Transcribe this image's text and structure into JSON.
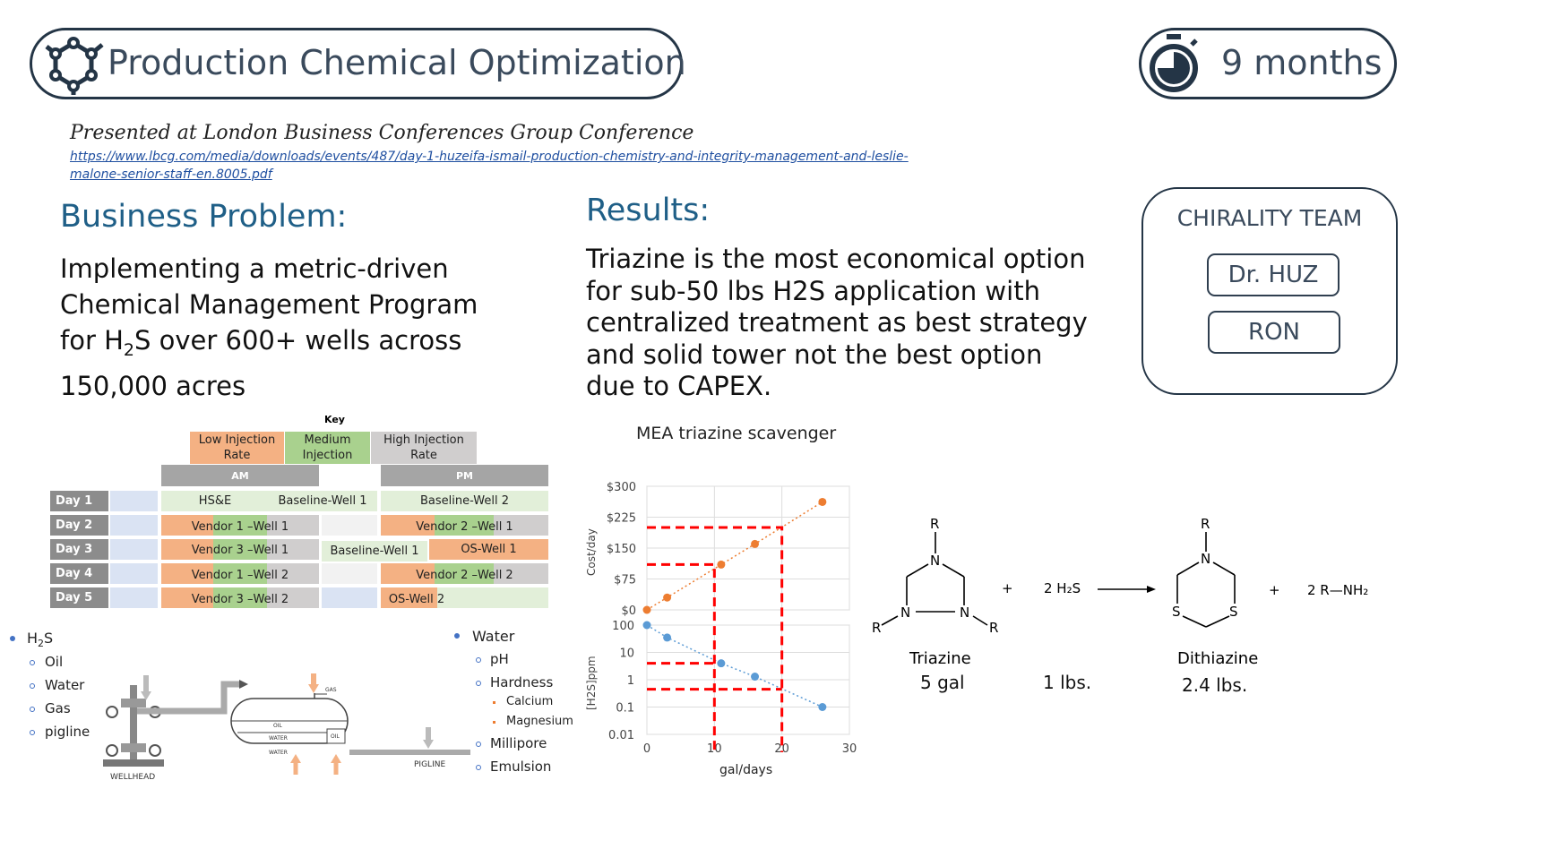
{
  "header": {
    "title": "Production Chemical Optimization",
    "duration": "9 months",
    "title_icon": "molecule-icon",
    "duration_icon": "stopwatch-icon"
  },
  "source": {
    "note": "Presented at London Business Conferences Group Conference",
    "link_line1": "https://www.lbcg.com/media/downloads/events/487/day-1-huzeifa-ismail-production-chemistry-and-integrity-management-and-leslie-",
    "link_line2": "malone-senior-staff-en.8005.pdf"
  },
  "business_problem": {
    "heading": "Business Problem:",
    "line1": "Implementing a metric-driven",
    "line2": "Chemical Management Program",
    "line3_pre": "for H",
    "line3_sub": "2",
    "line3_post": "S over 600+ wells across",
    "line4": "150,000 acres"
  },
  "results": {
    "heading": "Results:",
    "lines": [
      "Triazine is the most economical option",
      "for sub-50 lbs H2S application with",
      "centralized treatment as best strategy",
      "and solid tower not the best option",
      "due to CAPEX."
    ]
  },
  "team": {
    "title": "CHIRALITY TEAM",
    "members": [
      "Dr. HUZ",
      "RON"
    ]
  },
  "schedule": {
    "key_label": "Key",
    "key": [
      "Low Injection Rate",
      "Medium Injection",
      "High Injection Rate"
    ],
    "am": "AM",
    "pm": "PM",
    "days": [
      "Day 1",
      "Day 2",
      "Day 3",
      "Day 4",
      "Day 5"
    ],
    "entries": {
      "d1_a": "HS&E",
      "d1_b": "Baseline-Well 1",
      "d1_c": "Baseline-Well 2",
      "d2_a": "Vendor 1 –Well 1",
      "d2_c": "Vendor 2 –Well 1",
      "d3_a": "Vendor 3 –Well 1",
      "d3_b": "Baseline-Well 1",
      "d3_c": "OS-Well 1",
      "d4_a": "Vendor 1 –Well 2",
      "d4_c": "Vendor 2 –Well 2",
      "d5_a": "Vendor 3 –Well 2",
      "d5_c": "OS-Well 2"
    },
    "colors": {
      "low": "#f4b183",
      "medium": "#a9d18e",
      "high": "#d0cece",
      "blue": "#dae3f3",
      "green": "#e2efd9",
      "header": "#a5a5a5"
    }
  },
  "left_list": {
    "main_pre": "H",
    "main_sub": "2",
    "main_post": "S",
    "items": [
      "Oil",
      "Water",
      "Gas",
      "pigline"
    ]
  },
  "right_list": {
    "main": "Water",
    "items": [
      "pH",
      "Hardness"
    ],
    "sub_items": [
      "Calcium",
      "Magnesium"
    ],
    "items2": [
      "Millipore",
      "Emulsion"
    ]
  },
  "diagram": {
    "wellhead": "WELLHEAD",
    "pigline": "PIGLINE",
    "gas": "GAS",
    "oil": "OIL",
    "water": "WATER"
  },
  "chart_data": {
    "type": "line",
    "title": "MEA triazine scavenger",
    "xlabel": "gal/days",
    "x_ticks": [
      "0",
      "10",
      "20",
      "30"
    ],
    "xlim": [
      0,
      30
    ],
    "top": {
      "ylabel": "Cost/day",
      "y_ticks": [
        "$0",
        "$75",
        "$150",
        "$225",
        "$300"
      ],
      "ylim": [
        0,
        300
      ],
      "x": [
        0,
        3,
        11,
        16,
        26
      ],
      "values": [
        0,
        30,
        110,
        160,
        262
      ],
      "color": "#ed7d31"
    },
    "bottom": {
      "ylabel": "[H2S]ppm",
      "scale": "log",
      "y_ticks": [
        "100",
        "10",
        "1",
        "0.1",
        "0.01"
      ],
      "ylim": [
        0.01,
        100
      ],
      "x": [
        0,
        3,
        11,
        16,
        26
      ],
      "values": [
        100,
        35,
        4,
        1.3,
        0.1
      ],
      "color": "#5b9bd5"
    },
    "guides": {
      "color": "#ff0000",
      "x": [
        10,
        20
      ]
    }
  },
  "reaction": {
    "plus1": "+",
    "reagent": "2 H₂S",
    "plus2": "+",
    "product2": "2 R—NH₂",
    "triazine_label": "Triazine",
    "triazine_qty": "5 gal",
    "h2s_qty": "1 lbs.",
    "dithiazine_label": "Dithiazine",
    "dithiazine_qty": "2.4 lbs.",
    "r": "R",
    "n": "N",
    "s": "S"
  }
}
